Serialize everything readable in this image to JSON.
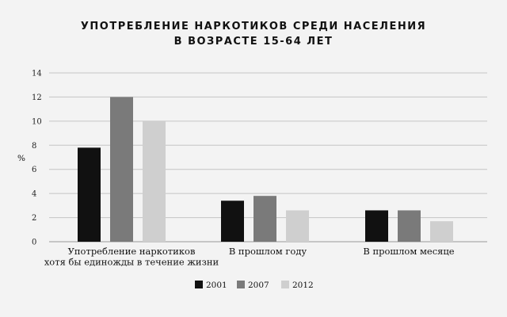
{
  "chart_data": {
    "type": "bar",
    "title_lines": [
      "УПОТРЕБЛЕНИЕ НАРКОТИКОВ СРЕДИ НАСЕЛЕНИЯ",
      "В ВОЗРАСТЕ 15-64 ЛЕТ"
    ],
    "ylabel": "%",
    "xlabel": "",
    "ylim": [
      0,
      14
    ],
    "yticks": [
      "0",
      "2",
      "4",
      "6",
      "8",
      "10",
      "12",
      "14"
    ],
    "grid": true,
    "legend_position": "bottom",
    "categories": [
      [
        "Употребление наркотиков",
        "хотя бы единожды в течение жизни"
      ],
      [
        "В прошлом году"
      ],
      [
        "В прошлом месяце"
      ]
    ],
    "series": [
      {
        "name": "2001",
        "color": "#111111",
        "values": [
          7.8,
          3.4,
          2.6
        ]
      },
      {
        "name": "2007",
        "color": "#7a7a7a",
        "values": [
          12.0,
          3.8,
          2.6
        ]
      },
      {
        "name": "2012",
        "color": "#cfcfcf",
        "values": [
          10.0,
          2.6,
          1.7
        ]
      }
    ]
  }
}
